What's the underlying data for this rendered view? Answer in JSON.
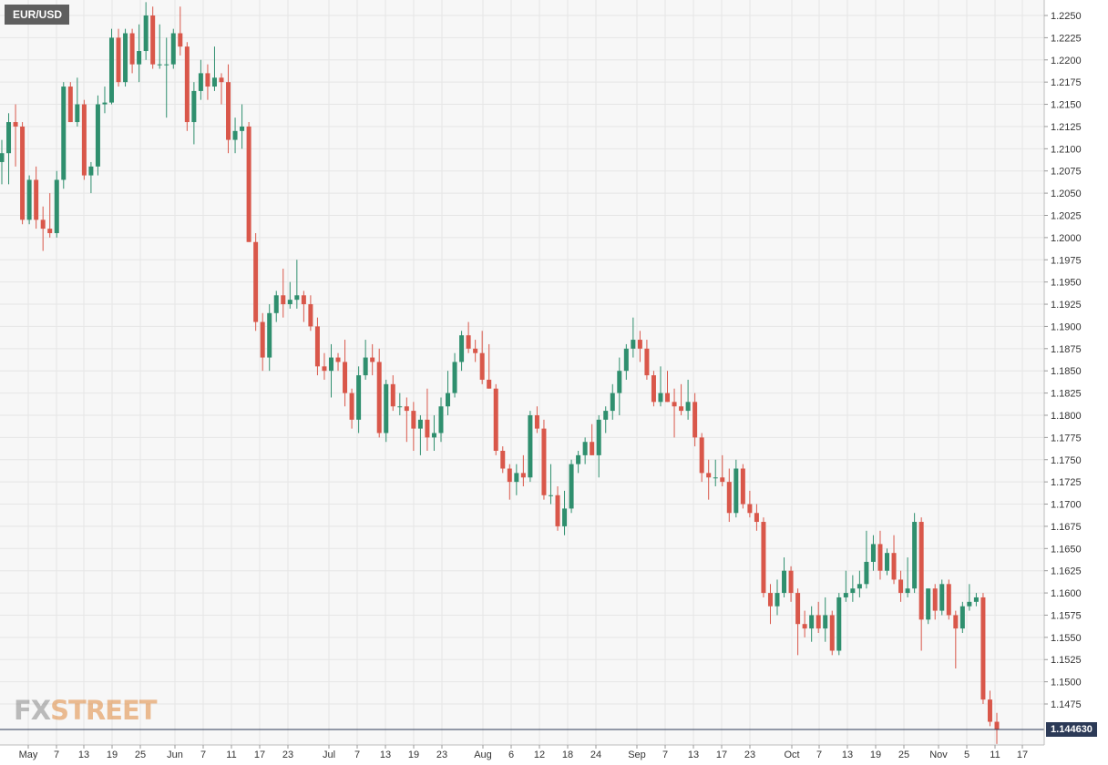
{
  "symbol": "EUR/USD",
  "logo": {
    "fx": "FX",
    "street": "STREET"
  },
  "last_price_label": "1.144630",
  "colors": {
    "up": "#2f8f6e",
    "down": "#d9574a",
    "grid": "#e6e6e6",
    "background": "#f7f7f7",
    "last_price_line": "#2c3a57"
  },
  "chart_data": {
    "type": "candlestick",
    "title": "EUR/USD",
    "ylim": [
      1.1425,
      1.2265
    ],
    "y_ticks": [
      "1.2250",
      "1.2225",
      "1.2200",
      "1.2175",
      "1.2150",
      "1.2125",
      "1.2100",
      "1.2075",
      "1.2050",
      "1.2025",
      "1.2000",
      "1.1975",
      "1.1950",
      "1.1925",
      "1.1900",
      "1.1875",
      "1.1850",
      "1.1825",
      "1.1800",
      "1.1775",
      "1.1750",
      "1.1725",
      "1.1700",
      "1.1675",
      "1.1650",
      "1.1625",
      "1.1600",
      "1.1575",
      "1.1550",
      "1.1525",
      "1.1500",
      "1.1475"
    ],
    "x_ticks": [
      "May",
      "7",
      "13",
      "19",
      "25",
      "Jun",
      "7",
      "11",
      "17",
      "23",
      "Jul",
      "7",
      "13",
      "19",
      "23",
      "Aug",
      "6",
      "12",
      "18",
      "24",
      "Sep",
      "7",
      "13",
      "17",
      "23",
      "Oct",
      "7",
      "13",
      "19",
      "25",
      "Nov",
      "5",
      "11",
      "17"
    ],
    "grid": true,
    "last_price": 1.14463,
    "candles": [
      {
        "o": 1.2085,
        "h": 1.211,
        "l": 1.206,
        "c": 1.2095
      },
      {
        "o": 1.2095,
        "h": 1.214,
        "l": 1.206,
        "c": 1.213
      },
      {
        "o": 1.213,
        "h": 1.215,
        "l": 1.208,
        "c": 1.2125
      },
      {
        "o": 1.2125,
        "h": 1.213,
        "l": 1.2015,
        "c": 1.202
      },
      {
        "o": 1.202,
        "h": 1.207,
        "l": 1.2015,
        "c": 1.2065
      },
      {
        "o": 1.2065,
        "h": 1.208,
        "l": 1.201,
        "c": 1.202
      },
      {
        "o": 1.202,
        "h": 1.2035,
        "l": 1.1985,
        "c": 1.201
      },
      {
        "o": 1.201,
        "h": 1.205,
        "l": 1.2,
        "c": 1.2005
      },
      {
        "o": 1.2005,
        "h": 1.2075,
        "l": 1.2,
        "c": 1.2065
      },
      {
        "o": 1.2065,
        "h": 1.2175,
        "l": 1.2055,
        "c": 1.217
      },
      {
        "o": 1.217,
        "h": 1.2175,
        "l": 1.213,
        "c": 1.213
      },
      {
        "o": 1.213,
        "h": 1.218,
        "l": 1.2125,
        "c": 1.215
      },
      {
        "o": 1.215,
        "h": 1.2155,
        "l": 1.2065,
        "c": 1.207
      },
      {
        "o": 1.207,
        "h": 1.2085,
        "l": 1.205,
        "c": 1.208
      },
      {
        "o": 1.208,
        "h": 1.216,
        "l": 1.207,
        "c": 1.215
      },
      {
        "o": 1.215,
        "h": 1.217,
        "l": 1.214,
        "c": 1.2152
      },
      {
        "o": 1.2152,
        "h": 1.2235,
        "l": 1.215,
        "c": 1.2225
      },
      {
        "o": 1.2225,
        "h": 1.2235,
        "l": 1.217,
        "c": 1.2175
      },
      {
        "o": 1.2175,
        "h": 1.2235,
        "l": 1.217,
        "c": 1.223
      },
      {
        "o": 1.223,
        "h": 1.2235,
        "l": 1.2185,
        "c": 1.2195
      },
      {
        "o": 1.2195,
        "h": 1.224,
        "l": 1.2175,
        "c": 1.221
      },
      {
        "o": 1.221,
        "h": 1.2265,
        "l": 1.22,
        "c": 1.225
      },
      {
        "o": 1.225,
        "h": 1.226,
        "l": 1.219,
        "c": 1.2195
      },
      {
        "o": 1.2195,
        "h": 1.224,
        "l": 1.219,
        "c": 1.2195
      },
      {
        "o": 1.2195,
        "h": 1.2225,
        "l": 1.2135,
        "c": 1.2195
      },
      {
        "o": 1.2195,
        "h": 1.2235,
        "l": 1.219,
        "c": 1.223
      },
      {
        "o": 1.223,
        "h": 1.226,
        "l": 1.2205,
        "c": 1.2215
      },
      {
        "o": 1.2215,
        "h": 1.222,
        "l": 1.212,
        "c": 1.213
      },
      {
        "o": 1.213,
        "h": 1.2175,
        "l": 1.2105,
        "c": 1.2165
      },
      {
        "o": 1.2165,
        "h": 1.22,
        "l": 1.2155,
        "c": 1.2185
      },
      {
        "o": 1.2185,
        "h": 1.2195,
        "l": 1.2155,
        "c": 1.217
      },
      {
        "o": 1.217,
        "h": 1.2215,
        "l": 1.2165,
        "c": 1.218
      },
      {
        "o": 1.218,
        "h": 1.2185,
        "l": 1.215,
        "c": 1.2175
      },
      {
        "o": 1.2175,
        "h": 1.2195,
        "l": 1.2095,
        "c": 1.211
      },
      {
        "o": 1.211,
        "h": 1.2135,
        "l": 1.2095,
        "c": 1.212
      },
      {
        "o": 1.212,
        "h": 1.215,
        "l": 1.21,
        "c": 1.2125
      },
      {
        "o": 1.2125,
        "h": 1.213,
        "l": 1.1995,
        "c": 1.1995
      },
      {
        "o": 1.1995,
        "h": 1.2005,
        "l": 1.1895,
        "c": 1.1905
      },
      {
        "o": 1.1905,
        "h": 1.1915,
        "l": 1.185,
        "c": 1.1865
      },
      {
        "o": 1.1865,
        "h": 1.1925,
        "l": 1.185,
        "c": 1.1915
      },
      {
        "o": 1.1915,
        "h": 1.194,
        "l": 1.1905,
        "c": 1.1935
      },
      {
        "o": 1.1935,
        "h": 1.1965,
        "l": 1.191,
        "c": 1.1925
      },
      {
        "o": 1.1925,
        "h": 1.195,
        "l": 1.192,
        "c": 1.193
      },
      {
        "o": 1.193,
        "h": 1.1975,
        "l": 1.192,
        "c": 1.1935
      },
      {
        "o": 1.1935,
        "h": 1.194,
        "l": 1.1905,
        "c": 1.1925
      },
      {
        "o": 1.1925,
        "h": 1.1935,
        "l": 1.1895,
        "c": 1.19
      },
      {
        "o": 1.19,
        "h": 1.191,
        "l": 1.1845,
        "c": 1.1855
      },
      {
        "o": 1.1855,
        "h": 1.187,
        "l": 1.184,
        "c": 1.185
      },
      {
        "o": 1.185,
        "h": 1.188,
        "l": 1.182,
        "c": 1.1865
      },
      {
        "o": 1.1865,
        "h": 1.187,
        "l": 1.185,
        "c": 1.186
      },
      {
        "o": 1.186,
        "h": 1.1885,
        "l": 1.181,
        "c": 1.1825
      },
      {
        "o": 1.1825,
        "h": 1.183,
        "l": 1.1785,
        "c": 1.1795
      },
      {
        "o": 1.1795,
        "h": 1.1855,
        "l": 1.178,
        "c": 1.1845
      },
      {
        "o": 1.1845,
        "h": 1.1885,
        "l": 1.184,
        "c": 1.1865
      },
      {
        "o": 1.1865,
        "h": 1.188,
        "l": 1.1845,
        "c": 1.186
      },
      {
        "o": 1.186,
        "h": 1.1875,
        "l": 1.1775,
        "c": 1.178
      },
      {
        "o": 1.178,
        "h": 1.184,
        "l": 1.177,
        "c": 1.1835
      },
      {
        "o": 1.1835,
        "h": 1.1845,
        "l": 1.1805,
        "c": 1.181
      },
      {
        "o": 1.181,
        "h": 1.1825,
        "l": 1.18,
        "c": 1.181
      },
      {
        "o": 1.181,
        "h": 1.182,
        "l": 1.177,
        "c": 1.1805
      },
      {
        "o": 1.1805,
        "h": 1.1815,
        "l": 1.176,
        "c": 1.1785
      },
      {
        "o": 1.1785,
        "h": 1.18,
        "l": 1.1755,
        "c": 1.1795
      },
      {
        "o": 1.1795,
        "h": 1.183,
        "l": 1.176,
        "c": 1.1775
      },
      {
        "o": 1.1775,
        "h": 1.18,
        "l": 1.176,
        "c": 1.178
      },
      {
        "o": 1.178,
        "h": 1.182,
        "l": 1.177,
        "c": 1.181
      },
      {
        "o": 1.181,
        "h": 1.185,
        "l": 1.18,
        "c": 1.1825
      },
      {
        "o": 1.1825,
        "h": 1.187,
        "l": 1.182,
        "c": 1.186
      },
      {
        "o": 1.186,
        "h": 1.1895,
        "l": 1.185,
        "c": 1.189
      },
      {
        "o": 1.189,
        "h": 1.1905,
        "l": 1.187,
        "c": 1.1875
      },
      {
        "o": 1.1875,
        "h": 1.1885,
        "l": 1.186,
        "c": 1.187
      },
      {
        "o": 1.187,
        "h": 1.1895,
        "l": 1.1835,
        "c": 1.184
      },
      {
        "o": 1.184,
        "h": 1.188,
        "l": 1.183,
        "c": 1.183
      },
      {
        "o": 1.183,
        "h": 1.1835,
        "l": 1.1755,
        "c": 1.176
      },
      {
        "o": 1.176,
        "h": 1.1765,
        "l": 1.1735,
        "c": 1.174
      },
      {
        "o": 1.174,
        "h": 1.1745,
        "l": 1.1705,
        "c": 1.1725
      },
      {
        "o": 1.1725,
        "h": 1.1745,
        "l": 1.171,
        "c": 1.1735
      },
      {
        "o": 1.1735,
        "h": 1.1755,
        "l": 1.172,
        "c": 1.173
      },
      {
        "o": 1.173,
        "h": 1.1805,
        "l": 1.1725,
        "c": 1.18
      },
      {
        "o": 1.18,
        "h": 1.181,
        "l": 1.178,
        "c": 1.1785
      },
      {
        "o": 1.1785,
        "h": 1.1795,
        "l": 1.1705,
        "c": 1.171
      },
      {
        "o": 1.171,
        "h": 1.1745,
        "l": 1.17,
        "c": 1.171
      },
      {
        "o": 1.171,
        "h": 1.172,
        "l": 1.167,
        "c": 1.1675
      },
      {
        "o": 1.1675,
        "h": 1.1715,
        "l": 1.1665,
        "c": 1.1695
      },
      {
        "o": 1.1695,
        "h": 1.175,
        "l": 1.169,
        "c": 1.1745
      },
      {
        "o": 1.1745,
        "h": 1.176,
        "l": 1.1735,
        "c": 1.1755
      },
      {
        "o": 1.1755,
        "h": 1.1775,
        "l": 1.1745,
        "c": 1.177
      },
      {
        "o": 1.177,
        "h": 1.179,
        "l": 1.1755,
        "c": 1.1755
      },
      {
        "o": 1.1755,
        "h": 1.18,
        "l": 1.173,
        "c": 1.1795
      },
      {
        "o": 1.1795,
        "h": 1.181,
        "l": 1.178,
        "c": 1.1805
      },
      {
        "o": 1.1805,
        "h": 1.1835,
        "l": 1.1795,
        "c": 1.1825
      },
      {
        "o": 1.1825,
        "h": 1.1865,
        "l": 1.18,
        "c": 1.185
      },
      {
        "o": 1.185,
        "h": 1.188,
        "l": 1.184,
        "c": 1.1875
      },
      {
        "o": 1.1875,
        "h": 1.191,
        "l": 1.1865,
        "c": 1.1885
      },
      {
        "o": 1.1885,
        "h": 1.1895,
        "l": 1.186,
        "c": 1.1875
      },
      {
        "o": 1.1875,
        "h": 1.1885,
        "l": 1.184,
        "c": 1.1845
      },
      {
        "o": 1.1845,
        "h": 1.185,
        "l": 1.181,
        "c": 1.1815
      },
      {
        "o": 1.1815,
        "h": 1.1855,
        "l": 1.181,
        "c": 1.1825
      },
      {
        "o": 1.1825,
        "h": 1.185,
        "l": 1.1815,
        "c": 1.1815
      },
      {
        "o": 1.1815,
        "h": 1.183,
        "l": 1.1775,
        "c": 1.181
      },
      {
        "o": 1.181,
        "h": 1.1835,
        "l": 1.18,
        "c": 1.1805
      },
      {
        "o": 1.1805,
        "h": 1.184,
        "l": 1.1795,
        "c": 1.1815
      },
      {
        "o": 1.1815,
        "h": 1.1825,
        "l": 1.1765,
        "c": 1.1775
      },
      {
        "o": 1.1775,
        "h": 1.178,
        "l": 1.1725,
        "c": 1.1735
      },
      {
        "o": 1.1735,
        "h": 1.175,
        "l": 1.1705,
        "c": 1.173
      },
      {
        "o": 1.173,
        "h": 1.175,
        "l": 1.172,
        "c": 1.173
      },
      {
        "o": 1.173,
        "h": 1.1755,
        "l": 1.172,
        "c": 1.1725
      },
      {
        "o": 1.1725,
        "h": 1.174,
        "l": 1.168,
        "c": 1.169
      },
      {
        "o": 1.169,
        "h": 1.175,
        "l": 1.1685,
        "c": 1.174
      },
      {
        "o": 1.174,
        "h": 1.1745,
        "l": 1.1695,
        "c": 1.17
      },
      {
        "o": 1.17,
        "h": 1.1715,
        "l": 1.1685,
        "c": 1.169
      },
      {
        "o": 1.169,
        "h": 1.17,
        "l": 1.167,
        "c": 1.168
      },
      {
        "o": 1.168,
        "h": 1.1685,
        "l": 1.1595,
        "c": 1.16
      },
      {
        "o": 1.16,
        "h": 1.161,
        "l": 1.1565,
        "c": 1.1585
      },
      {
        "o": 1.1585,
        "h": 1.1615,
        "l": 1.1575,
        "c": 1.16
      },
      {
        "o": 1.16,
        "h": 1.164,
        "l": 1.1595,
        "c": 1.1625
      },
      {
        "o": 1.1625,
        "h": 1.163,
        "l": 1.159,
        "c": 1.16
      },
      {
        "o": 1.16,
        "h": 1.1605,
        "l": 1.153,
        "c": 1.1565
      },
      {
        "o": 1.1565,
        "h": 1.158,
        "l": 1.155,
        "c": 1.156
      },
      {
        "o": 1.156,
        "h": 1.1585,
        "l": 1.1545,
        "c": 1.1575
      },
      {
        "o": 1.1575,
        "h": 1.159,
        "l": 1.1555,
        "c": 1.156
      },
      {
        "o": 1.156,
        "h": 1.1595,
        "l": 1.1545,
        "c": 1.1575
      },
      {
        "o": 1.1575,
        "h": 1.158,
        "l": 1.153,
        "c": 1.1535
      },
      {
        "o": 1.1535,
        "h": 1.16,
        "l": 1.153,
        "c": 1.1595
      },
      {
        "o": 1.1595,
        "h": 1.1625,
        "l": 1.159,
        "c": 1.16
      },
      {
        "o": 1.16,
        "h": 1.162,
        "l": 1.159,
        "c": 1.1605
      },
      {
        "o": 1.1605,
        "h": 1.1625,
        "l": 1.1595,
        "c": 1.161
      },
      {
        "o": 1.161,
        "h": 1.167,
        "l": 1.1605,
        "c": 1.1635
      },
      {
        "o": 1.1635,
        "h": 1.1665,
        "l": 1.1625,
        "c": 1.1655
      },
      {
        "o": 1.1655,
        "h": 1.167,
        "l": 1.1615,
        "c": 1.1625
      },
      {
        "o": 1.1625,
        "h": 1.165,
        "l": 1.162,
        "c": 1.1645
      },
      {
        "o": 1.1645,
        "h": 1.1665,
        "l": 1.161,
        "c": 1.1615
      },
      {
        "o": 1.1615,
        "h": 1.1625,
        "l": 1.159,
        "c": 1.16
      },
      {
        "o": 1.16,
        "h": 1.164,
        "l": 1.1595,
        "c": 1.1605
      },
      {
        "o": 1.1605,
        "h": 1.169,
        "l": 1.16,
        "c": 1.168
      },
      {
        "o": 1.168,
        "h": 1.1685,
        "l": 1.1535,
        "c": 1.157
      },
      {
        "o": 1.157,
        "h": 1.1605,
        "l": 1.1565,
        "c": 1.1605
      },
      {
        "o": 1.1605,
        "h": 1.161,
        "l": 1.157,
        "c": 1.158
      },
      {
        "o": 1.158,
        "h": 1.1615,
        "l": 1.1575,
        "c": 1.161
      },
      {
        "o": 1.161,
        "h": 1.1615,
        "l": 1.157,
        "c": 1.1575
      },
      {
        "o": 1.1575,
        "h": 1.158,
        "l": 1.1515,
        "c": 1.156
      },
      {
        "o": 1.156,
        "h": 1.159,
        "l": 1.1555,
        "c": 1.1585
      },
      {
        "o": 1.1585,
        "h": 1.161,
        "l": 1.158,
        "c": 1.159
      },
      {
        "o": 1.159,
        "h": 1.16,
        "l": 1.1585,
        "c": 1.1595
      },
      {
        "o": 1.1595,
        "h": 1.16,
        "l": 1.1475,
        "c": 1.148
      },
      {
        "o": 1.148,
        "h": 1.149,
        "l": 1.145,
        "c": 1.1455
      },
      {
        "o": 1.1455,
        "h": 1.1465,
        "l": 1.143,
        "c": 1.1446
      }
    ]
  }
}
